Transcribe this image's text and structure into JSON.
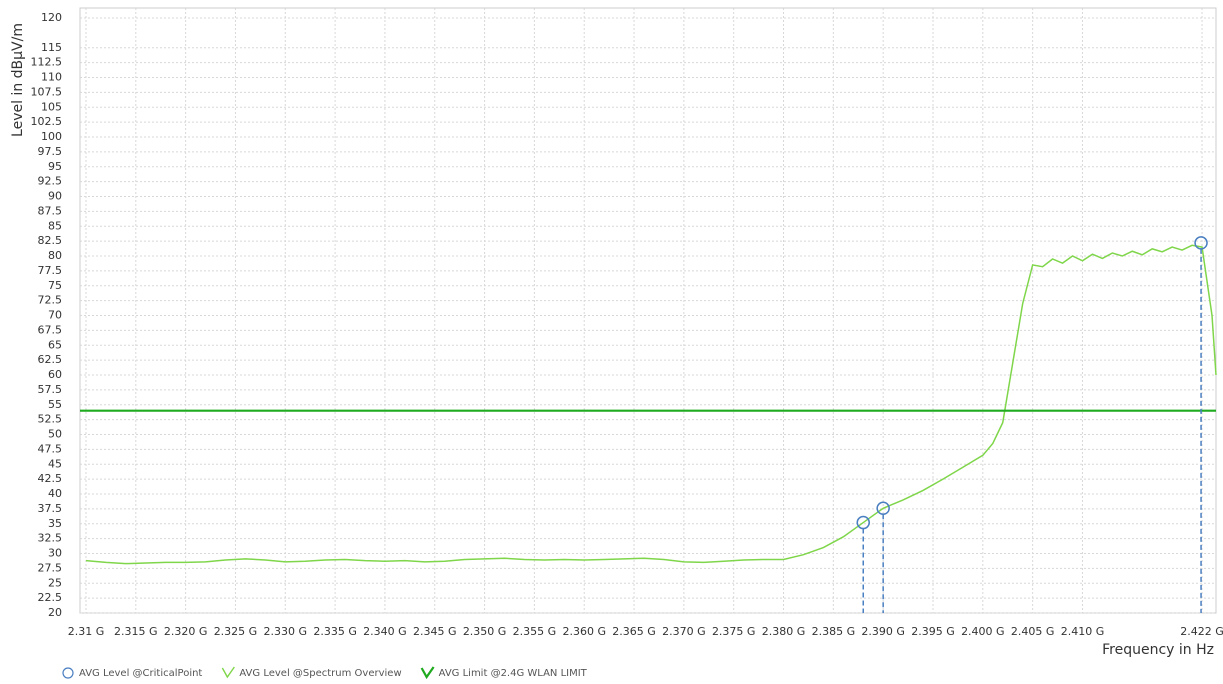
{
  "chart_data": {
    "type": "line",
    "y_label": "Level in dBµV/m",
    "x_label": "Frequency in Hz",
    "xlim": [
      2309400000,
      2423400000
    ],
    "ylim": [
      20,
      120
    ],
    "yticks": [
      20,
      22.5,
      25,
      27.5,
      30,
      32.5,
      35,
      37.5,
      40,
      42.5,
      45,
      47.5,
      50,
      52.5,
      55,
      57.5,
      60,
      62.5,
      65,
      67.5,
      70,
      72.5,
      75,
      77.5,
      80,
      82.5,
      85,
      87.5,
      90,
      92.5,
      95,
      97.5,
      100,
      102.5,
      105,
      107.5,
      110,
      112.5,
      115,
      120
    ],
    "xticks": [
      {
        "value": 2310000000,
        "label": "2.31 G"
      },
      {
        "value": 2315000000,
        "label": "2.315 G"
      },
      {
        "value": 2320000000,
        "label": "2.320 G"
      },
      {
        "value": 2325000000,
        "label": "2.325 G"
      },
      {
        "value": 2330000000,
        "label": "2.330 G"
      },
      {
        "value": 2335000000,
        "label": "2.335 G"
      },
      {
        "value": 2340000000,
        "label": "2.340 G"
      },
      {
        "value": 2345000000,
        "label": "2.345 G"
      },
      {
        "value": 2350000000,
        "label": "2.350 G"
      },
      {
        "value": 2355000000,
        "label": "2.355 G"
      },
      {
        "value": 2360000000,
        "label": "2.360 G"
      },
      {
        "value": 2365000000,
        "label": "2.365 G"
      },
      {
        "value": 2370000000,
        "label": "2.370 G"
      },
      {
        "value": 2375000000,
        "label": "2.375 G"
      },
      {
        "value": 2380000000,
        "label": "2.380 G"
      },
      {
        "value": 2385000000,
        "label": "2.385 G"
      },
      {
        "value": 2390000000,
        "label": "2.390 G"
      },
      {
        "value": 2395000000,
        "label": "2.395 G"
      },
      {
        "value": 2400000000,
        "label": "2.400 G"
      },
      {
        "value": 2405000000,
        "label": "2.405 G"
      },
      {
        "value": 2410000000,
        "label": "2.410 G"
      },
      {
        "value": 2422000000,
        "label": "2.422 G"
      }
    ],
    "grid": true,
    "series": [
      {
        "name": "AVG Level @CriticalPoint",
        "style": "markers",
        "color": "#4a7fc1",
        "x": [
          2388000000,
          2390000000,
          2421900000
        ],
        "values": [
          35.2,
          37.6,
          82.2
        ]
      },
      {
        "name": "AVG Level @Spectrum Overview",
        "style": "line",
        "color": "#7fd64a",
        "x": [
          2310000000,
          2312000000,
          2314000000,
          2316000000,
          2318000000,
          2320000000,
          2322000000,
          2324000000,
          2326000000,
          2328000000,
          2330000000,
          2332000000,
          2334000000,
          2336000000,
          2338000000,
          2340000000,
          2342000000,
          2344000000,
          2346000000,
          2348000000,
          2350000000,
          2352000000,
          2354000000,
          2356000000,
          2358000000,
          2360000000,
          2362000000,
          2364000000,
          2366000000,
          2368000000,
          2370000000,
          2372000000,
          2374000000,
          2376000000,
          2378000000,
          2380000000,
          2382000000,
          2384000000,
          2386000000,
          2388000000,
          2390000000,
          2392000000,
          2394000000,
          2396000000,
          2398000000,
          2400000000,
          2401000000,
          2402000000,
          2403000000,
          2404000000,
          2405000000,
          2406000000,
          2407000000,
          2408000000,
          2409000000,
          2410000000,
          2411000000,
          2412000000,
          2413000000,
          2414000000,
          2415000000,
          2416000000,
          2417000000,
          2418000000,
          2419000000,
          2420000000,
          2421000000,
          2422000000,
          2423000000,
          2423400000
        ],
        "values": [
          28.8,
          28.5,
          28.3,
          28.4,
          28.5,
          28.5,
          28.6,
          28.9,
          29.1,
          28.9,
          28.6,
          28.7,
          28.9,
          29.0,
          28.8,
          28.7,
          28.8,
          28.6,
          28.7,
          29.0,
          29.1,
          29.2,
          29.0,
          28.9,
          29.0,
          28.9,
          29.0,
          29.1,
          29.2,
          29.0,
          28.6,
          28.5,
          28.7,
          28.9,
          29.0,
          29.0,
          29.8,
          31.0,
          32.8,
          35.2,
          37.6,
          39.0,
          40.6,
          42.5,
          44.5,
          46.5,
          48.5,
          52,
          62,
          72,
          78.5,
          78.2,
          79.5,
          78.8,
          80.0,
          79.2,
          80.3,
          79.6,
          80.5,
          80.0,
          80.8,
          80.2,
          81.2,
          80.7,
          81.5,
          81.0,
          81.8,
          81.5,
          70,
          60
        ]
      },
      {
        "name": "AVG Limit @2.4G WLAN LIMIT",
        "style": "line",
        "color": "#1faa1f",
        "x": [
          2309400000,
          2423400000
        ],
        "values": [
          54,
          54
        ]
      }
    ]
  }
}
